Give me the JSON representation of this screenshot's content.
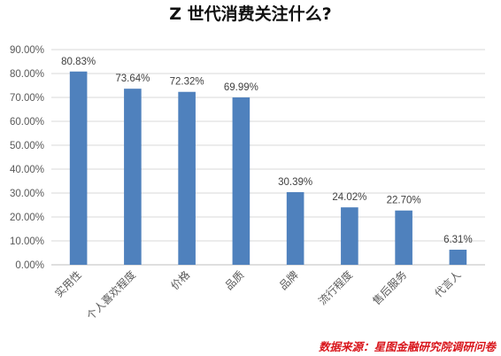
{
  "chart_data": {
    "type": "bar",
    "title": "Z 世代消费关注什么?",
    "categories": [
      "实用性",
      "个人喜欢程度",
      "价格",
      "品质",
      "品牌",
      "流行程度",
      "售后服务",
      "代言人"
    ],
    "values": [
      80.83,
      73.64,
      72.32,
      69.99,
      30.39,
      24.02,
      22.7,
      6.31
    ],
    "data_labels": [
      "80.83%",
      "73.64%",
      "72.32%",
      "69.99%",
      "30.39%",
      "24.02%",
      "22.70%",
      "6.31%"
    ],
    "y_ticks": [
      "0.00%",
      "10.00%",
      "20.00%",
      "30.00%",
      "40.00%",
      "50.00%",
      "60.00%",
      "70.00%",
      "80.00%",
      "90.00%"
    ],
    "ylim": [
      0,
      90
    ],
    "xlabel": "",
    "ylabel": "",
    "grid": true,
    "bar_color": "#4f81bd",
    "source": "数据来源：星图金融研究院调研问卷",
    "source_color": "#d9161c"
  }
}
